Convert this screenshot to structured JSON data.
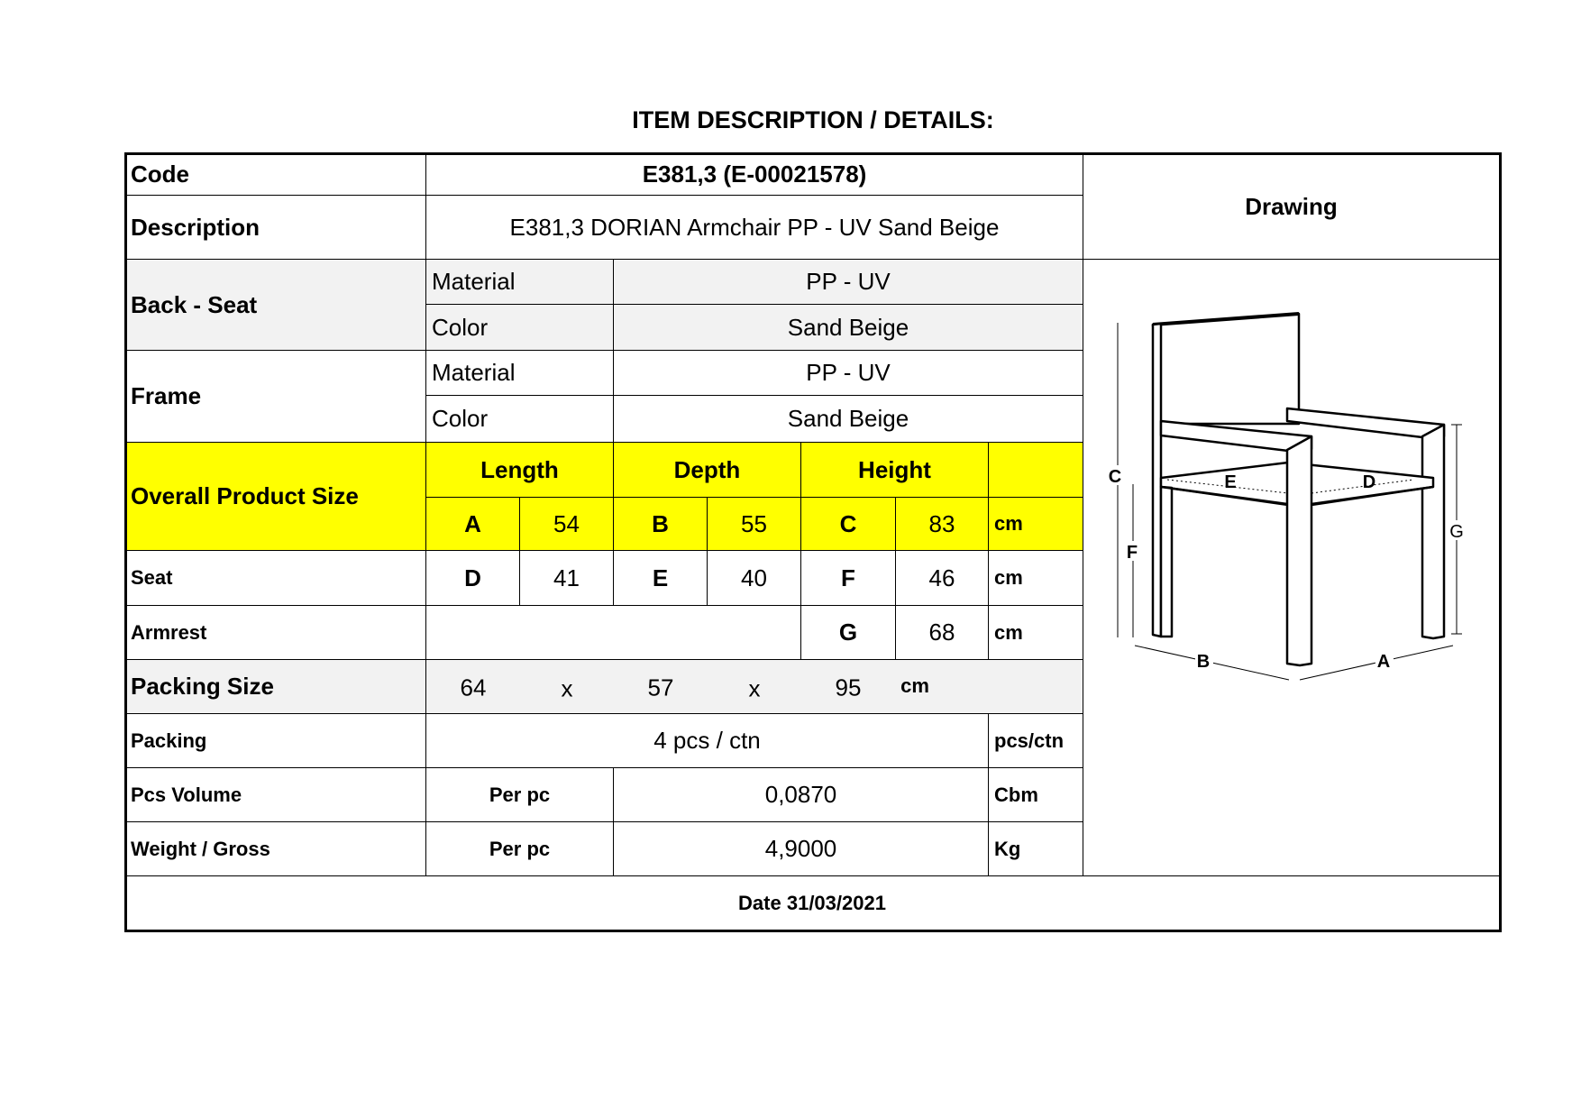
{
  "title": "ITEM DESCRIPTION / DETAILS:",
  "code": {
    "label": "Code",
    "value": "E381,3 (E-00021578)"
  },
  "description": {
    "label": "Description",
    "value": "E381,3 DORIAN Armchair PP - UV  Sand Beige"
  },
  "drawing_label": "Drawing",
  "back_seat": {
    "label": "Back - Seat",
    "material_label": "Material",
    "material": "PP - UV",
    "color_label": "Color",
    "color": "Sand Beige"
  },
  "frame": {
    "label": "Frame",
    "material_label": "Material",
    "material": "PP - UV",
    "color_label": "Color",
    "color": "Sand Beige"
  },
  "overall": {
    "label": "Overall Product Size",
    "headers": [
      "Length",
      "Depth",
      "Height"
    ],
    "a_label": "A",
    "a": "54",
    "b_label": "B",
    "b": "55",
    "c_label": "C",
    "c": "83",
    "unit": "cm"
  },
  "seat": {
    "label": "Seat",
    "d_label": "D",
    "d": "41",
    "e_label": "E",
    "e": "40",
    "f_label": "F",
    "f": "46",
    "unit": "cm"
  },
  "armrest": {
    "label": "Armrest",
    "g_label": "G",
    "g": "68",
    "unit": "cm"
  },
  "packing_size": {
    "label": "Packing Size",
    "l": "64",
    "x1": "x",
    "w": "57",
    "x2": "x",
    "h": "95",
    "unit": "cm"
  },
  "packing": {
    "label": "Packing",
    "value": "4 pcs / ctn",
    "unit": "pcs/ctn"
  },
  "pcs_volume": {
    "label": "Pcs Volume",
    "per": "Per pc",
    "value": "0,0870",
    "unit": "Cbm"
  },
  "weight": {
    "label": "Weight / Gross",
    "per": "Per pc",
    "value": "4,9000",
    "unit": "Kg"
  },
  "date": "Date 31/03/2021",
  "drawing_letters": {
    "a": "A",
    "b": "B",
    "c": "C",
    "d": "D",
    "e": "E",
    "f": "F",
    "g": "G"
  }
}
